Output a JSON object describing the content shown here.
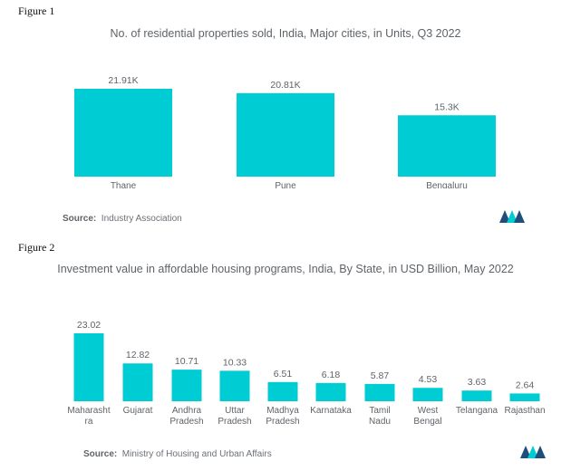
{
  "figures": [
    {
      "label": "Figure 1",
      "source_label": "Source:",
      "source_text": "Industry Association"
    },
    {
      "label": "Figure 2",
      "source_label": "Source:",
      "source_text": "Ministry of Housing and Urban Affairs"
    }
  ],
  "colors": {
    "bar": "#00cdd3",
    "text": "#5f6368",
    "logo_dark": "#1f4e79",
    "logo_light": "#00cdd3"
  },
  "chart_data": [
    {
      "type": "bar",
      "title": "No. of residential properties sold, India, Major cities, in Units, Q3 2022",
      "categories": [
        "Thane",
        "Pune",
        "Bengaluru"
      ],
      "values": [
        21910,
        20810,
        15300
      ],
      "value_labels": [
        "21.91K",
        "20.81K",
        "15.3K"
      ],
      "xlabel": "",
      "ylabel": "",
      "grid": false,
      "legend": "none"
    },
    {
      "type": "bar",
      "title": "Investment value in affordable housing programs, India, By State, in USD Billion, May 2022",
      "categories": [
        "Maharasht ra",
        "Gujarat",
        "Andhra Pradesh",
        "Uttar Pradesh",
        "Madhya Pradesh",
        "Karnataka",
        "Tamil Nadu",
        "West Bengal",
        "Telangana",
        "Rajasthan"
      ],
      "category_lines": [
        [
          "Maharasht",
          "ra"
        ],
        [
          "Gujarat"
        ],
        [
          "Andhra",
          "Pradesh"
        ],
        [
          "Uttar",
          "Pradesh"
        ],
        [
          "Madhya",
          "Pradesh"
        ],
        [
          "Karnataka"
        ],
        [
          "Tamil",
          "Nadu"
        ],
        [
          "West",
          "Bengal"
        ],
        [
          "Telangana"
        ],
        [
          "Rajasthan"
        ]
      ],
      "values": [
        23.02,
        12.82,
        10.71,
        10.33,
        6.51,
        6.18,
        5.87,
        4.53,
        3.63,
        2.64
      ],
      "value_labels": [
        "23.02",
        "12.82",
        "10.71",
        "10.33",
        "6.51",
        "6.18",
        "5.87",
        "4.53",
        "3.63",
        "2.64"
      ],
      "xlabel": "",
      "ylabel": "",
      "grid": false,
      "legend": "none"
    }
  ]
}
